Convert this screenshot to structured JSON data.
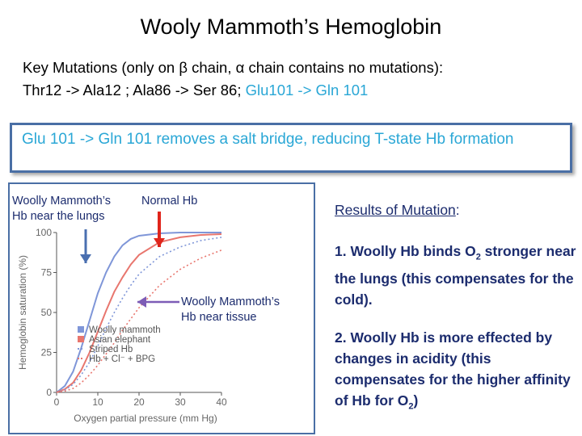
{
  "title": "Wooly Mammoth’s Hemoglobin",
  "key_mutations": {
    "line1_a": "Key Mutations (only on ",
    "line1_beta": "β",
    "line1_b": " chain, ",
    "line1_alpha": "α",
    "line1_c": " chain contains no mutations):",
    "line2_a": "Thr12 -> Ala12 ;  Ala86 -> Ser 86;  ",
    "line2_highlight": "Glu101 -> Gln 101"
  },
  "note": "Glu 101 -> Gln 101 removes a salt bridge, reducing T-state Hb formation",
  "chart_labels": {
    "lungs_l1": "Woolly Mammoth’s",
    "lungs_l2": "Hb near the lungs",
    "normal": "Normal Hb",
    "tissue_l1": "Woolly Mammoth’s",
    "tissue_l2": "Hb near tissue"
  },
  "results": {
    "heading": "Results of Mutation",
    "heading_suffix": ":",
    "r1_a": "1.  Woolly Hb binds O",
    "r1_sub": "2",
    "r1_b": " stronger near the lungs (this compensates for the cold).",
    "r2_a": "2.  Woolly Hb is more effected by changes in acidity (this compensates for the higher affinity of Hb for O",
    "r2_sub": "2",
    "r2_c": ")"
  },
  "colors": {
    "mammoth": "#7f96d8",
    "elephant": "#e8766e",
    "arrow_blue": "#4a6fb0",
    "arrow_red": "#e0251b",
    "arrow_purple": "#7d5cb6",
    "accent": "#2aa7d6"
  },
  "chart_data": {
    "type": "line",
    "xlabel": "Oxygen partial pressure (mm Hg)",
    "ylabel": "Hemoglobin saturation (%)",
    "xlim": [
      0,
      40
    ],
    "ylim": [
      0,
      100
    ],
    "x_ticks": [
      "0",
      "10",
      "20",
      "30",
      "40"
    ],
    "y_ticks": [
      "0",
      "25",
      "50",
      "75",
      "100"
    ],
    "legend_position": "bottom-left",
    "series": [
      {
        "name": "Woolly mammoth",
        "style": "solid",
        "color": "#7f96d8",
        "x": [
          0,
          2,
          4,
          6,
          8,
          10,
          12,
          14,
          16,
          18,
          20,
          25,
          30,
          35,
          40
        ],
        "y": [
          0,
          4,
          13,
          28,
          45,
          62,
          75,
          85,
          92,
          96,
          98,
          99.5,
          100,
          100,
          100
        ]
      },
      {
        "name": "Asian elephant",
        "style": "solid",
        "color": "#e8766e",
        "x": [
          0,
          2,
          4,
          6,
          8,
          10,
          12,
          14,
          16,
          18,
          20,
          25,
          30,
          35,
          40
        ],
        "y": [
          0,
          2,
          6,
          14,
          25,
          38,
          51,
          63,
          72,
          80,
          86,
          94,
          97,
          98.5,
          99
        ]
      },
      {
        "name": "Striped Hb",
        "style": "dotted",
        "color": "#7f96d8",
        "x": [
          0,
          2,
          4,
          6,
          8,
          10,
          12,
          14,
          16,
          18,
          20,
          25,
          30,
          35,
          40
        ],
        "y": [
          0,
          1.5,
          5,
          11,
          19,
          29,
          40,
          50,
          59,
          67,
          74,
          85,
          91,
          95,
          97
        ]
      },
      {
        "name": "Hb + Cl⁻ + BPG",
        "style": "dotted",
        "color": "#e8766e",
        "x": [
          0,
          2,
          4,
          6,
          8,
          10,
          12,
          14,
          16,
          18,
          20,
          25,
          30,
          35,
          40
        ],
        "y": [
          0,
          0.8,
          2.5,
          6,
          11,
          17,
          24,
          31,
          39,
          46,
          53,
          67,
          77,
          84,
          89
        ]
      }
    ]
  }
}
